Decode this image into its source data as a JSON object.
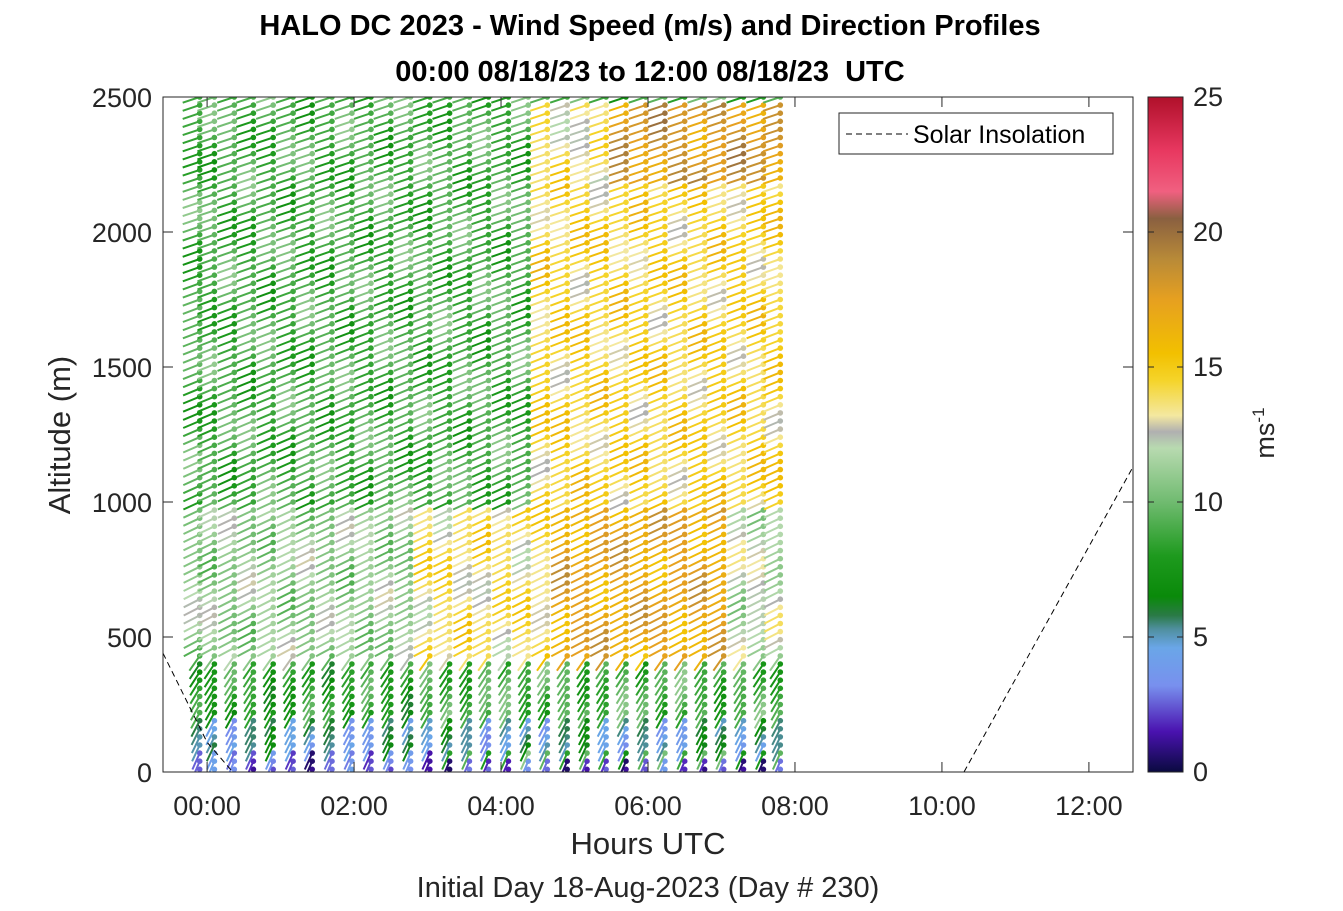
{
  "chart_data": {
    "type": "scatter",
    "subtype": "wind-barb-profile",
    "title": "HALO DC 2023 - Wind Speed (m/s) and Direction Profiles",
    "subtitle": "00:00 08/18/23 to 12:00 08/18/23  UTC",
    "xlabel": "Hours UTC",
    "x_subtitle": "Initial Day 18-Aug-2023 (Day # 230)",
    "ylabel": "Altitude (m)",
    "xlim_hours": [
      -0.6,
      12.6
    ],
    "ylim": [
      0,
      2500
    ],
    "x_ticks": [
      {
        "hour": 0,
        "label": "00:00"
      },
      {
        "hour": 2,
        "label": "02:00"
      },
      {
        "hour": 4,
        "label": "04:00"
      },
      {
        "hour": 6,
        "label": "06:00"
      },
      {
        "hour": 8,
        "label": "08:00"
      },
      {
        "hour": 10,
        "label": "10:00"
      },
      {
        "hour": 12,
        "label": "12:00"
      }
    ],
    "y_ticks": [
      {
        "value": 0,
        "label": "0"
      },
      {
        "value": 500,
        "label": "500"
      },
      {
        "value": 1000,
        "label": "1000"
      },
      {
        "value": 1500,
        "label": "1500"
      },
      {
        "value": 2000,
        "label": "2000"
      },
      {
        "value": 2500,
        "label": "2500"
      }
    ],
    "legend": {
      "label": "Solar Insolation",
      "position": "top-right",
      "line_style": "dashed",
      "color": "#000000"
    },
    "colorbar": {
      "label": "ms",
      "label_exponent": "-1",
      "range": [
        0,
        25
      ],
      "ticks": [
        {
          "value": 0,
          "label": "0"
        },
        {
          "value": 5,
          "label": "5"
        },
        {
          "value": 10,
          "label": "10"
        },
        {
          "value": 15,
          "label": "15"
        },
        {
          "value": 20,
          "label": "20"
        },
        {
          "value": 25,
          "label": "25"
        }
      ],
      "stops": [
        {
          "value": 0,
          "color": "#0a0a40"
        },
        {
          "value": 1.5,
          "color": "#4a12b0"
        },
        {
          "value": 3.2,
          "color": "#7890ee"
        },
        {
          "value": 4.6,
          "color": "#6aa6e8"
        },
        {
          "value": 5.3,
          "color": "#4f8f9e"
        },
        {
          "value": 5.8,
          "color": "#2a7a46"
        },
        {
          "value": 6.5,
          "color": "#0a8a0a"
        },
        {
          "value": 8.0,
          "color": "#1e9a1e"
        },
        {
          "value": 10.0,
          "color": "#70bb70"
        },
        {
          "value": 12.0,
          "color": "#b8dab0"
        },
        {
          "value": 12.6,
          "color": "#b0b0b0"
        },
        {
          "value": 13.2,
          "color": "#f4e8a0"
        },
        {
          "value": 14.5,
          "color": "#f5d42a"
        },
        {
          "value": 15.5,
          "color": "#f2c000"
        },
        {
          "value": 17.5,
          "color": "#e6a020"
        },
        {
          "value": 19.0,
          "color": "#b88a38"
        },
        {
          "value": 20.5,
          "color": "#8a6040"
        },
        {
          "value": 21.5,
          "color": "#f06080"
        },
        {
          "value": 23.0,
          "color": "#e83860"
        },
        {
          "value": 25,
          "color": "#b0102a"
        }
      ]
    },
    "solar_insolation": {
      "note": "scaled dashed curve, values in y-axis units (m)",
      "points": [
        [
          -0.6,
          440
        ],
        [
          0.0,
          110
        ],
        [
          0.35,
          0
        ],
        [
          10.3,
          0
        ],
        [
          12.6,
          1130
        ]
      ]
    },
    "profile_times_hours": [
      -0.1,
      0.1,
      0.37,
      0.63,
      0.9,
      1.17,
      1.43,
      1.7,
      1.97,
      2.23,
      2.5,
      2.77,
      3.03,
      3.3,
      3.57,
      3.83,
      4.1,
      4.37,
      4.63,
      4.9,
      5.17,
      5.43,
      5.7,
      5.97,
      6.23,
      6.5,
      6.77,
      7.03,
      7.3,
      7.57,
      7.8
    ],
    "altitude_levels_m": {
      "start": 10,
      "step": 30,
      "count": 84
    },
    "wind_speed_fields": [
      {
        "hour_from": -0.2,
        "hour_to": 3.3,
        "alt_from": 0,
        "alt_to": 80,
        "speed": 2.5
      },
      {
        "hour_from": 3.3,
        "hour_to": 7.9,
        "alt_from": 0,
        "alt_to": 60,
        "speed": 2.0
      },
      {
        "hour_from": -0.2,
        "hour_to": 7.9,
        "alt_from": 80,
        "alt_to": 200,
        "speed": 5.0
      },
      {
        "hour_from": -0.2,
        "hour_to": 2.9,
        "alt_from": 200,
        "alt_to": 430,
        "speed": 8.0
      },
      {
        "hour_from": 2.9,
        "hour_to": 7.9,
        "alt_from": 200,
        "alt_to": 430,
        "speed": 9.0
      },
      {
        "hour_from": -0.2,
        "hour_to": 3.0,
        "alt_from": 430,
        "alt_to": 1000,
        "speed": 11.0
      },
      {
        "hour_from": 3.0,
        "hour_to": 4.7,
        "alt_from": 430,
        "alt_to": 1000,
        "speed": 13.8
      },
      {
        "hour_from": 4.7,
        "hour_to": 7.1,
        "alt_from": 430,
        "alt_to": 1000,
        "speed": 17.0
      },
      {
        "hour_from": 7.1,
        "hour_to": 7.9,
        "alt_from": 430,
        "alt_to": 1000,
        "speed": 12.0
      },
      {
        "hour_from": -0.2,
        "hour_to": 4.4,
        "alt_from": 1000,
        "alt_to": 2500,
        "speed": 9.0
      },
      {
        "hour_from": 4.4,
        "hour_to": 7.9,
        "alt_from": 1000,
        "alt_to": 2200,
        "speed": 14.5
      },
      {
        "hour_from": 4.4,
        "hour_to": 5.6,
        "alt_from": 2200,
        "alt_to": 2500,
        "speed": 13.5
      },
      {
        "hour_from": 5.6,
        "hour_to": 7.9,
        "alt_from": 2200,
        "alt_to": 2500,
        "speed": 18.0
      }
    ]
  }
}
